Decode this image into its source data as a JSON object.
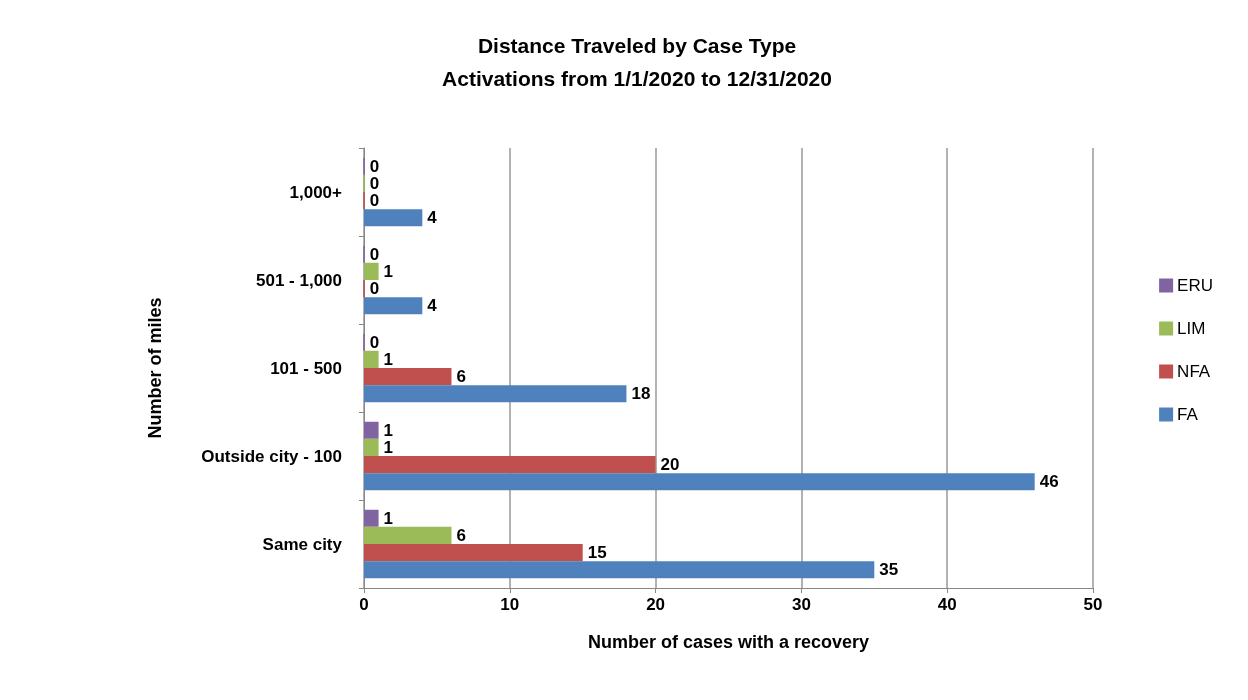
{
  "chart_data": {
    "type": "bar",
    "orientation": "horizontal",
    "title": "Distance Traveled by Case Type",
    "subtitle": "Activations from 1/1/2020 to 12/31/2020",
    "xlabel": "Number of cases with a recovery",
    "ylabel": "Number of miles",
    "categories": [
      "1,000+",
      "501 - 1,000",
      "101 - 500",
      "Outside city - 100",
      "Same city"
    ],
    "series": [
      {
        "name": "ERU",
        "color": "#8064a2",
        "values": [
          0,
          0,
          0,
          1,
          1
        ]
      },
      {
        "name": "LIM",
        "color": "#9bbb59",
        "values": [
          0,
          1,
          1,
          1,
          6
        ]
      },
      {
        "name": "NFA",
        "color": "#c0504d",
        "values": [
          0,
          0,
          6,
          20,
          15
        ]
      },
      {
        "name": "FA",
        "color": "#4f81bd",
        "values": [
          4,
          4,
          18,
          46,
          35
        ]
      }
    ],
    "xlim": [
      0,
      50
    ],
    "xticks": [
      0,
      10,
      20,
      30,
      40,
      50
    ],
    "grid": "x",
    "legend": "right",
    "data_labels": true
  }
}
